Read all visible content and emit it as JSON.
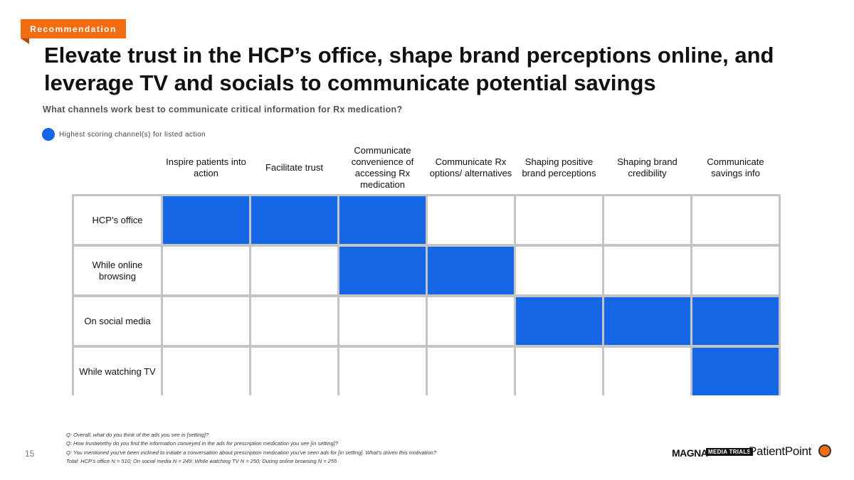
{
  "tag": "Recommendation",
  "title": "Elevate trust in the HCP’s office, shape brand perceptions online, and leverage TV and socials to communicate potential savings",
  "subtitle": "What channels work best to communicate critical information for Rx medication?",
  "legend": "Highest scoring channel(s) for listed action",
  "columns": [
    "Inspire patients into action",
    "Facilitate trust",
    "Communicate convenience of accessing Rx medication",
    "Communicate Rx options/ alternatives",
    "Shaping positive brand perceptions",
    "Shaping brand credibility",
    "Communicate savings info"
  ],
  "rows": [
    {
      "label": "HCP’s office",
      "highlight": [
        1,
        1,
        1,
        0,
        0,
        0,
        0
      ]
    },
    {
      "label": "While online browsing",
      "highlight": [
        0,
        0,
        1,
        1,
        0,
        0,
        0
      ]
    },
    {
      "label": "On social media",
      "highlight": [
        0,
        0,
        0,
        0,
        1,
        1,
        1
      ]
    },
    {
      "label": "While watching TV",
      "highlight": [
        0,
        0,
        0,
        0,
        0,
        0,
        1
      ]
    }
  ],
  "footnotes": [
    "Q: Overall, what do you think of the ads you see in [setting]?",
    "Q: How trustworthy do you find the information conveyed in the ads for prescription medication you see [in setting]?",
    "Q: You mentioned you’ve been inclined to initiate a conversation about prescription medication you’ve seen ads for [in setting]. What’s driven this motivation?",
    "Total: HCP’s office N = 510; On social media N = 249; While watching TV N = 250; During online browsing N = 255"
  ],
  "page_number": "15",
  "logos": {
    "magna": "MAGNA",
    "media_trials": "MEDIA TRIALS",
    "patientpoint": "PatientPoint"
  },
  "colors": {
    "highlight": "#1567e6",
    "accent": "#f26c11"
  }
}
